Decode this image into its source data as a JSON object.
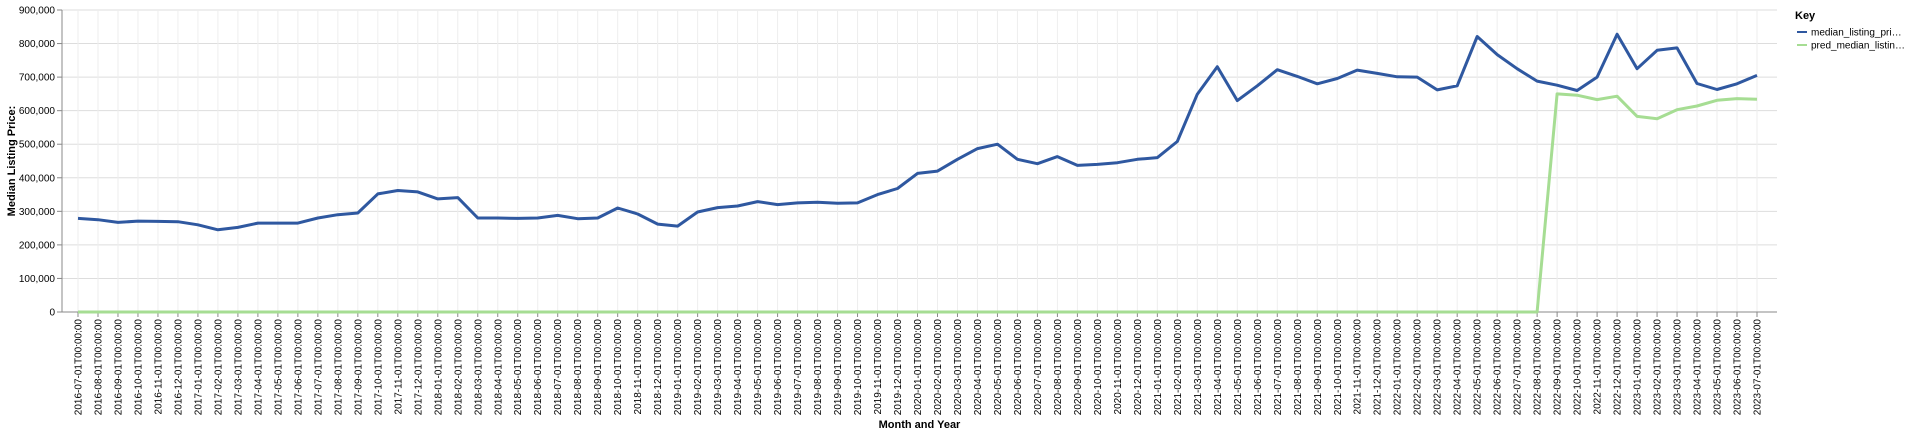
{
  "chart_data": {
    "type": "line",
    "xlabel": "Month and Year",
    "ylabel": "Median Listing Price:",
    "ylim": [
      0,
      900000
    ],
    "y_ticks": [
      0,
      100000,
      200000,
      300000,
      400000,
      500000,
      600000,
      700000,
      800000,
      900000
    ],
    "y_tick_labels": [
      "0",
      "100,000",
      "200,000",
      "300,000",
      "400,000",
      "500,000",
      "600,000",
      "700,000",
      "800,000",
      "900,000"
    ],
    "grid": true,
    "legend": {
      "title": "Key",
      "position": "right"
    },
    "x": [
      "2016-07-01T00:00:00",
      "2016-08-01T00:00:00",
      "2016-09-01T00:00:00",
      "2016-10-01T00:00:00",
      "2016-11-01T00:00:00",
      "2016-12-01T00:00:00",
      "2017-01-01T00:00:00",
      "2017-02-01T00:00:00",
      "2017-03-01T00:00:00",
      "2017-04-01T00:00:00",
      "2017-05-01T00:00:00",
      "2017-06-01T00:00:00",
      "2017-07-01T00:00:00",
      "2017-08-01T00:00:00",
      "2017-09-01T00:00:00",
      "2017-10-01T00:00:00",
      "2017-11-01T00:00:00",
      "2017-12-01T00:00:00",
      "2018-01-01T00:00:00",
      "2018-02-01T00:00:00",
      "2018-03-01T00:00:00",
      "2018-04-01T00:00:00",
      "2018-05-01T00:00:00",
      "2018-06-01T00:00:00",
      "2018-07-01T00:00:00",
      "2018-08-01T00:00:00",
      "2018-09-01T00:00:00",
      "2018-10-01T00:00:00",
      "2018-11-01T00:00:00",
      "2018-12-01T00:00:00",
      "2019-01-01T00:00:00",
      "2019-02-01T00:00:00",
      "2019-03-01T00:00:00",
      "2019-04-01T00:00:00",
      "2019-05-01T00:00:00",
      "2019-06-01T00:00:00",
      "2019-07-01T00:00:00",
      "2019-08-01T00:00:00",
      "2019-09-01T00:00:00",
      "2019-10-01T00:00:00",
      "2019-11-01T00:00:00",
      "2019-12-01T00:00:00",
      "2020-01-01T00:00:00",
      "2020-02-01T00:00:00",
      "2020-03-01T00:00:00",
      "2020-04-01T00:00:00",
      "2020-05-01T00:00:00",
      "2020-06-01T00:00:00",
      "2020-07-01T00:00:00",
      "2020-08-01T00:00:00",
      "2020-09-01T00:00:00",
      "2020-10-01T00:00:00",
      "2020-11-01T00:00:00",
      "2020-12-01T00:00:00",
      "2021-01-01T00:00:00",
      "2021-02-01T00:00:00",
      "2021-03-01T00:00:00",
      "2021-04-01T00:00:00",
      "2021-05-01T00:00:00",
      "2021-06-01T00:00:00",
      "2021-07-01T00:00:00",
      "2021-08-01T00:00:00",
      "2021-09-01T00:00:00",
      "2021-10-01T00:00:00",
      "2021-11-01T00:00:00",
      "2021-12-01T00:00:00",
      "2022-01-01T00:00:00",
      "2022-02-01T00:00:00",
      "2022-03-01T00:00:00",
      "2022-04-01T00:00:00",
      "2022-05-01T00:00:00",
      "2022-06-01T00:00:00",
      "2022-07-01T00:00:00",
      "2022-08-01T00:00:00",
      "2022-09-01T00:00:00",
      "2022-10-01T00:00:00",
      "2022-11-01T00:00:00",
      "2022-12-01T00:00:00",
      "2023-01-01T00:00:00",
      "2023-02-01T00:00:00",
      "2023-03-01T00:00:00",
      "2023-04-01T00:00:00",
      "2023-05-01T00:00:00",
      "2023-06-01T00:00:00",
      "2023-07-01T00:00:00"
    ],
    "series": [
      {
        "name": "median_listing_pri…",
        "color": "#2f58a0",
        "values": [
          279000,
          275000,
          267000,
          271000,
          270000,
          269000,
          260000,
          245000,
          252000,
          265000,
          265000,
          265000,
          280000,
          290000,
          295000,
          352000,
          362000,
          358000,
          337000,
          341000,
          280000,
          280000,
          279000,
          280000,
          288000,
          278000,
          280000,
          310000,
          292000,
          262000,
          256000,
          298000,
          311000,
          316000,
          329000,
          320000,
          325000,
          327000,
          324000,
          325000,
          350000,
          368000,
          413000,
          420000,
          455000,
          487000,
          500000,
          455000,
          442000,
          463000,
          437000,
          440000,
          445000,
          455000,
          460000,
          508000,
          649000,
          731000,
          630000,
          674000,
          722000,
          702000,
          680000,
          696000,
          721000,
          711000,
          701000,
          700000,
          662000,
          674000,
          821000,
          767000,
          725000,
          688000,
          676000,
          660000,
          700000,
          828000,
          725000,
          780000,
          787000,
          681000,
          663000,
          680000,
          705000
        ]
      },
      {
        "name": "pred_median_listin…",
        "color": "#a6dd93",
        "values": [
          0,
          0,
          0,
          0,
          0,
          0,
          0,
          0,
          0,
          0,
          0,
          0,
          0,
          0,
          0,
          0,
          0,
          0,
          0,
          0,
          0,
          0,
          0,
          0,
          0,
          0,
          0,
          0,
          0,
          0,
          0,
          0,
          0,
          0,
          0,
          0,
          0,
          0,
          0,
          0,
          0,
          0,
          0,
          0,
          0,
          0,
          0,
          0,
          0,
          0,
          0,
          0,
          0,
          0,
          0,
          0,
          0,
          0,
          0,
          0,
          0,
          0,
          0,
          0,
          0,
          0,
          0,
          0,
          0,
          0,
          0,
          0,
          0,
          0,
          650000,
          646000,
          633000,
          643000,
          583000,
          576000,
          603000,
          614000,
          631000,
          636000,
          634000
        ]
      }
    ]
  }
}
